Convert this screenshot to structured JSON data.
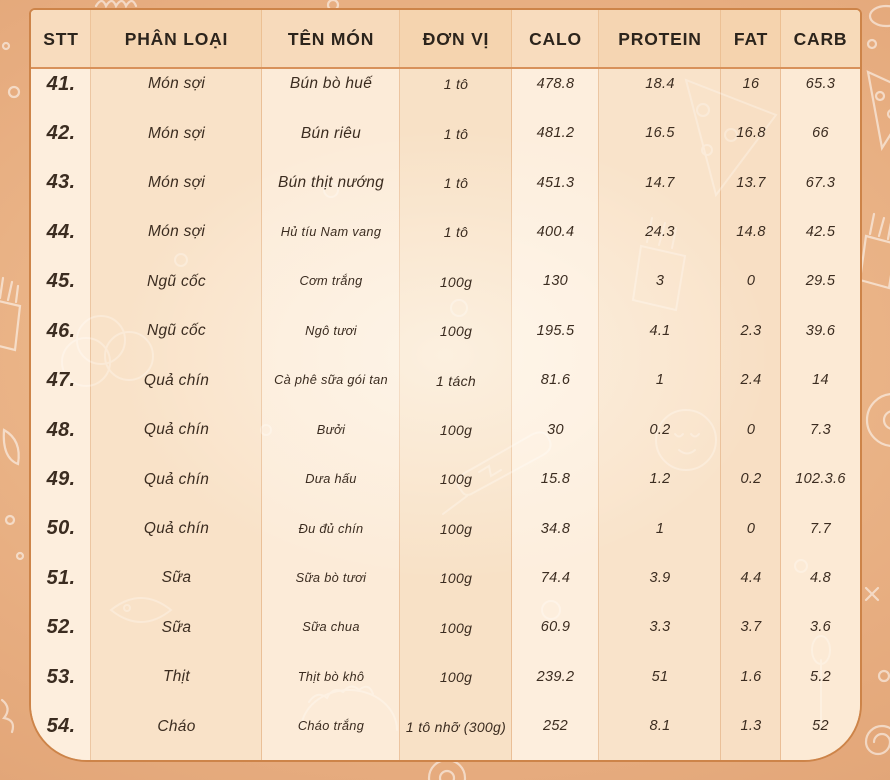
{
  "colors": {
    "page_bg": "#e7ad80",
    "table_bg": "#fbe7cf",
    "table_border": "#cd8449",
    "header_rule": "#d8915a",
    "text": "#3b2c20",
    "doodle": "#ffffff"
  },
  "table": {
    "columns": [
      {
        "key": "stt",
        "label": "STT"
      },
      {
        "key": "phan_loai",
        "label": "PHÂN LOẠI"
      },
      {
        "key": "ten_mon",
        "label": "TÊN MÓN"
      },
      {
        "key": "don_vi",
        "label": "ĐƠN VỊ"
      },
      {
        "key": "calo",
        "label": "CALO"
      },
      {
        "key": "protein",
        "label": "PROTEIN"
      },
      {
        "key": "fat",
        "label": "FAT"
      },
      {
        "key": "carb",
        "label": "CARB"
      }
    ],
    "rows": [
      {
        "stt": "41.",
        "phan_loai": "Món sợi",
        "ten_mon": "Bún bò huế",
        "small_name": false,
        "don_vi": "1 tô",
        "calo": "478.8",
        "protein": "18.4",
        "fat": "16",
        "carb": "65.3"
      },
      {
        "stt": "42.",
        "phan_loai": "Món sợi",
        "ten_mon": "Bún riêu",
        "small_name": false,
        "don_vi": "1 tô",
        "calo": "481.2",
        "protein": "16.5",
        "fat": "16.8",
        "carb": "66"
      },
      {
        "stt": "43.",
        "phan_loai": "Món sợi",
        "ten_mon": "Bún thịt nướng",
        "small_name": false,
        "don_vi": "1 tô",
        "calo": "451.3",
        "protein": "14.7",
        "fat": "13.7",
        "carb": "67.3"
      },
      {
        "stt": "44.",
        "phan_loai": "Món sợi",
        "ten_mon": "Hủ tíu Nam vang",
        "small_name": true,
        "don_vi": "1 tô",
        "calo": "400.4",
        "protein": "24.3",
        "fat": "14.8",
        "carb": "42.5"
      },
      {
        "stt": "45.",
        "phan_loai": "Ngũ cốc",
        "ten_mon": "Cơm trắng",
        "small_name": true,
        "don_vi": "100g",
        "calo": "130",
        "protein": "3",
        "fat": "0",
        "carb": "29.5"
      },
      {
        "stt": "46.",
        "phan_loai": "Ngũ cốc",
        "ten_mon": "Ngô tươi",
        "small_name": true,
        "don_vi": "100g",
        "calo": "195.5",
        "protein": "4.1",
        "fat": "2.3",
        "carb": "39.6"
      },
      {
        "stt": "47.",
        "phan_loai": "Quả chín",
        "ten_mon": "Cà phê sữa gói tan",
        "small_name": true,
        "don_vi": "1 tách",
        "calo": "81.6",
        "protein": "1",
        "fat": "2.4",
        "carb": "14"
      },
      {
        "stt": "48.",
        "phan_loai": "Quả chín",
        "ten_mon": "Bưởi",
        "small_name": true,
        "don_vi": "100g",
        "calo": "30",
        "protein": "0.2",
        "fat": "0",
        "carb": "7.3"
      },
      {
        "stt": "49.",
        "phan_loai": "Quả chín",
        "ten_mon": "Dưa hấu",
        "small_name": true,
        "don_vi": "100g",
        "calo": "15.8",
        "protein": "1.2",
        "fat": "0.2",
        "carb": "102.3.6"
      },
      {
        "stt": "50.",
        "phan_loai": "Quả chín",
        "ten_mon": "Đu đủ chín",
        "small_name": true,
        "don_vi": "100g",
        "calo": "34.8",
        "protein": "1",
        "fat": "0",
        "carb": "7.7"
      },
      {
        "stt": "51.",
        "phan_loai": "Sữa",
        "ten_mon": "Sữa bò tươi",
        "small_name": true,
        "don_vi": "100g",
        "calo": "74.4",
        "protein": "3.9",
        "fat": "4.4",
        "carb": "4.8"
      },
      {
        "stt": "52.",
        "phan_loai": "Sữa",
        "ten_mon": "Sữa chua",
        "small_name": true,
        "don_vi": "100g",
        "calo": "60.9",
        "protein": "3.3",
        "fat": "3.7",
        "carb": "3.6"
      },
      {
        "stt": "53.",
        "phan_loai": "Thịt",
        "ten_mon": "Thịt bò khô",
        "small_name": true,
        "don_vi": "100g",
        "calo": "239.2",
        "protein": "51",
        "fat": "1.6",
        "carb": "5.2"
      },
      {
        "stt": "54.",
        "phan_loai": "Cháo",
        "ten_mon": "Cháo trắng",
        "small_name": true,
        "don_vi": "1 tô nhỡ (300g)",
        "calo": "252",
        "protein": "8.1",
        "fat": "1.3",
        "carb": "52"
      }
    ]
  }
}
